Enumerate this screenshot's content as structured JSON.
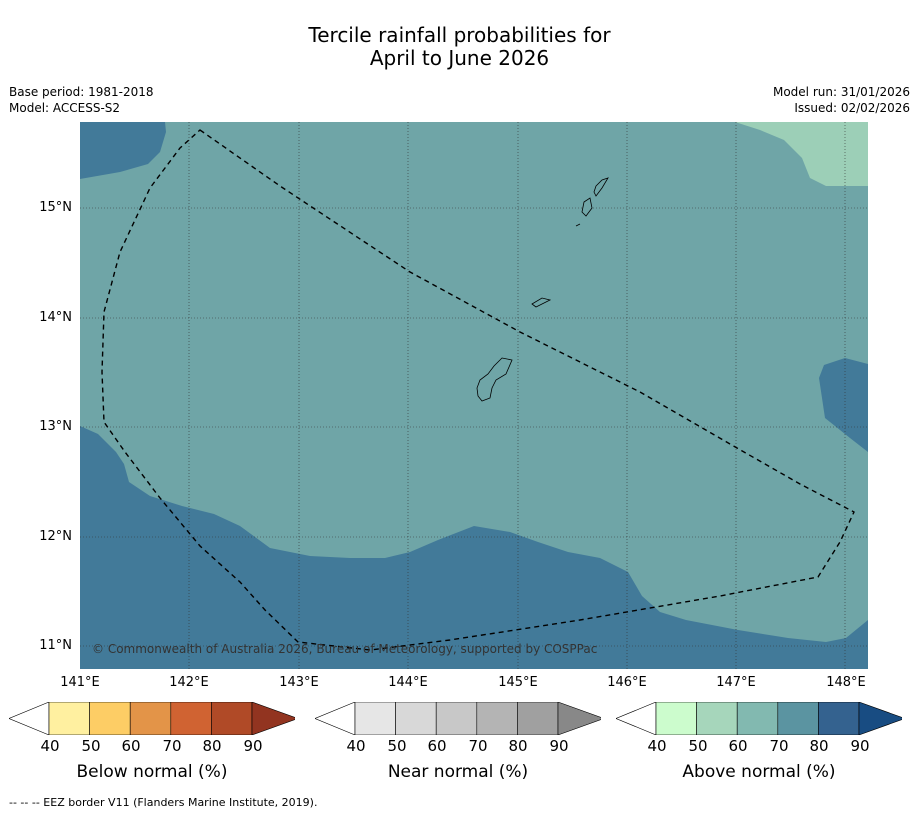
{
  "title": {
    "line1": "Tercile rainfall probabilities for",
    "line2": "April to June 2026"
  },
  "meta": {
    "base_period": "Base period: 1981-2018",
    "model": "Model: ACCESS-S2",
    "model_run": "Model run: 31/01/2026",
    "issued": "Issued: 02/02/2026"
  },
  "map": {
    "y_ticks": [
      "15°N",
      "14°N",
      "13°N",
      "12°N",
      "11°N"
    ],
    "x_ticks": [
      "141°E",
      "142°E",
      "143°E",
      "144°E",
      "145°E",
      "146°E",
      "147°E",
      "148°E"
    ],
    "copyright": "© Commonwealth of Australia 2026, Bureau of Meteorology, supported by COSPPac",
    "colors": {
      "above_60_70": "#6fa5a7",
      "above_70_80": "#427a99",
      "above_50_60": "#9ccfb7",
      "border": "#000000"
    }
  },
  "colorbars": [
    {
      "title": "Below normal (%)",
      "ticks": [
        "40",
        "50",
        "60",
        "70",
        "80",
        "90"
      ],
      "colors": [
        "#ffffff",
        "#fff0a0",
        "#fdcd65",
        "#e39448",
        "#d06332",
        "#b04a27",
        "#923420"
      ]
    },
    {
      "title": "Near normal (%)",
      "ticks": [
        "40",
        "50",
        "60",
        "70",
        "80",
        "90"
      ],
      "colors": [
        "#ffffff",
        "#e6e6e6",
        "#d8d8d8",
        "#c8c8c8",
        "#b4b4b4",
        "#a0a0a0",
        "#888888"
      ]
    },
    {
      "title": "Above normal (%)",
      "ticks": [
        "40",
        "50",
        "60",
        "70",
        "80",
        "90"
      ],
      "colors": [
        "#ffffff",
        "#ccfccd",
        "#a6d6bb",
        "#82b9b0",
        "#5b94a1",
        "#34628f",
        "#184c82"
      ]
    }
  ],
  "footer": "--  --  -- EEZ border V11 (Flanders Marine Institute, 2019)."
}
